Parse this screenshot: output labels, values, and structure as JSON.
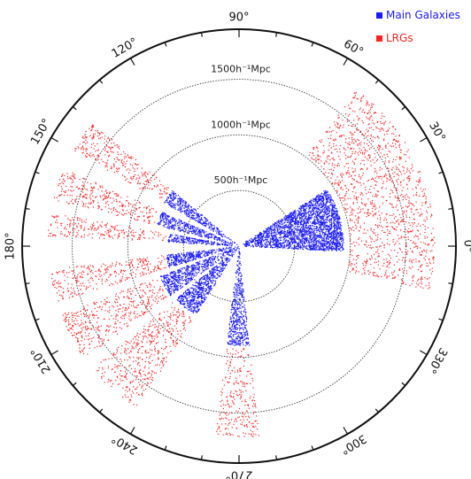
{
  "chart_data": {
    "type": "scatter",
    "projection": "polar",
    "title": "",
    "legend": {
      "placement": "top-right",
      "entries": [
        {
          "label": "Main Galaxies",
          "color": "#1a1aff"
        },
        {
          "label": "LRGs",
          "color": "#ff2222"
        }
      ]
    },
    "angle_ticks": [
      "0°",
      "30°",
      "60°",
      "90°",
      "120°",
      "150°",
      "180°",
      "210°",
      "240°",
      "270°",
      "300°",
      "330°"
    ],
    "angle_tick_values": [
      0,
      30,
      60,
      90,
      120,
      150,
      180,
      210,
      240,
      270,
      300,
      330
    ],
    "radial_rings": [
      {
        "value": 500,
        "label": "500h⁻¹Mpc"
      },
      {
        "value": 1000,
        "label": "1000h⁻¹Mpc"
      },
      {
        "value": 1500,
        "label": "1500h⁻¹Mpc"
      }
    ],
    "r_max": 1950,
    "series": [
      {
        "name": "Main Galaxies",
        "color": "#1a1aff",
        "wedges": [
          {
            "a1": -3,
            "a2": 33,
            "r1": 40,
            "r2": 940,
            "n": 2600
          },
          {
            "a1": 140,
            "a2": 150,
            "r1": 0,
            "r2": 780,
            "n": 380
          },
          {
            "a1": 156,
            "a2": 166,
            "r1": 0,
            "r2": 760,
            "n": 360
          },
          {
            "a1": 170,
            "a2": 177,
            "r1": 0,
            "r2": 640,
            "n": 220
          },
          {
            "a1": 187,
            "a2": 197,
            "r1": 0,
            "r2": 660,
            "n": 360
          },
          {
            "a1": 201,
            "a2": 216,
            "r1": 0,
            "r2": 760,
            "n": 560
          },
          {
            "a1": 220,
            "a2": 238,
            "r1": 0,
            "r2": 740,
            "n": 640
          },
          {
            "a1": 263,
            "a2": 276,
            "r1": 0,
            "r2": 900,
            "n": 520
          }
        ]
      },
      {
        "name": "LRGs",
        "color": "#ff2222",
        "wedges": [
          {
            "a1": -13,
            "a2": 53,
            "r1": 1000,
            "r2": 1760,
            "n": 1300
          },
          {
            "a1": 140,
            "a2": 150,
            "r1": 800,
            "r2": 1720,
            "n": 300
          },
          {
            "a1": 156,
            "a2": 166,
            "r1": 780,
            "r2": 1720,
            "n": 300
          },
          {
            "a1": 170,
            "a2": 177,
            "r1": 660,
            "r2": 1720,
            "n": 220
          },
          {
            "a1": 187,
            "a2": 197,
            "r1": 680,
            "r2": 1720,
            "n": 300
          },
          {
            "a1": 201,
            "a2": 216,
            "r1": 780,
            "r2": 1720,
            "n": 420
          },
          {
            "a1": 220,
            "a2": 238,
            "r1": 760,
            "r2": 1720,
            "n": 460
          },
          {
            "a1": 263,
            "a2": 276,
            "r1": 920,
            "r2": 1720,
            "n": 260
          }
        ]
      }
    ]
  }
}
